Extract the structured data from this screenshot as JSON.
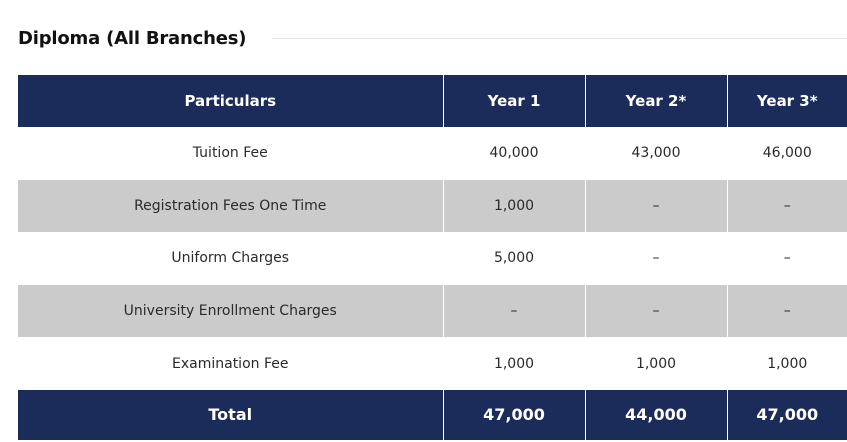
{
  "section": {
    "title": "Diploma (All Branches)"
  },
  "table": {
    "headers": [
      "Particulars",
      "Year 1",
      "Year 2*",
      "Year 3*"
    ],
    "rows": [
      {
        "particular": "Tuition Fee",
        "year1": "40,000",
        "year2": "43,000",
        "year3": "46,000"
      },
      {
        "particular": "Registration Fees One Time",
        "year1": "1,000",
        "year2": "–",
        "year3": "–"
      },
      {
        "particular": "Uniform Charges",
        "year1": "5,000",
        "year2": "–",
        "year3": "–"
      },
      {
        "particular": "University Enrollment Charges",
        "year1": "–",
        "year2": "–",
        "year3": "–"
      },
      {
        "particular": "Examination Fee",
        "year1": "1,000",
        "year2": "1,000",
        "year3": "1,000"
      }
    ],
    "total": {
      "label": "Total",
      "year1": "47,000",
      "year2": "44,000",
      "year3": "47,000"
    }
  },
  "colors": {
    "header_bg": "#1c2c5a",
    "stripe_bg": "#cbcbcb",
    "header_text": "#ffffff"
  }
}
